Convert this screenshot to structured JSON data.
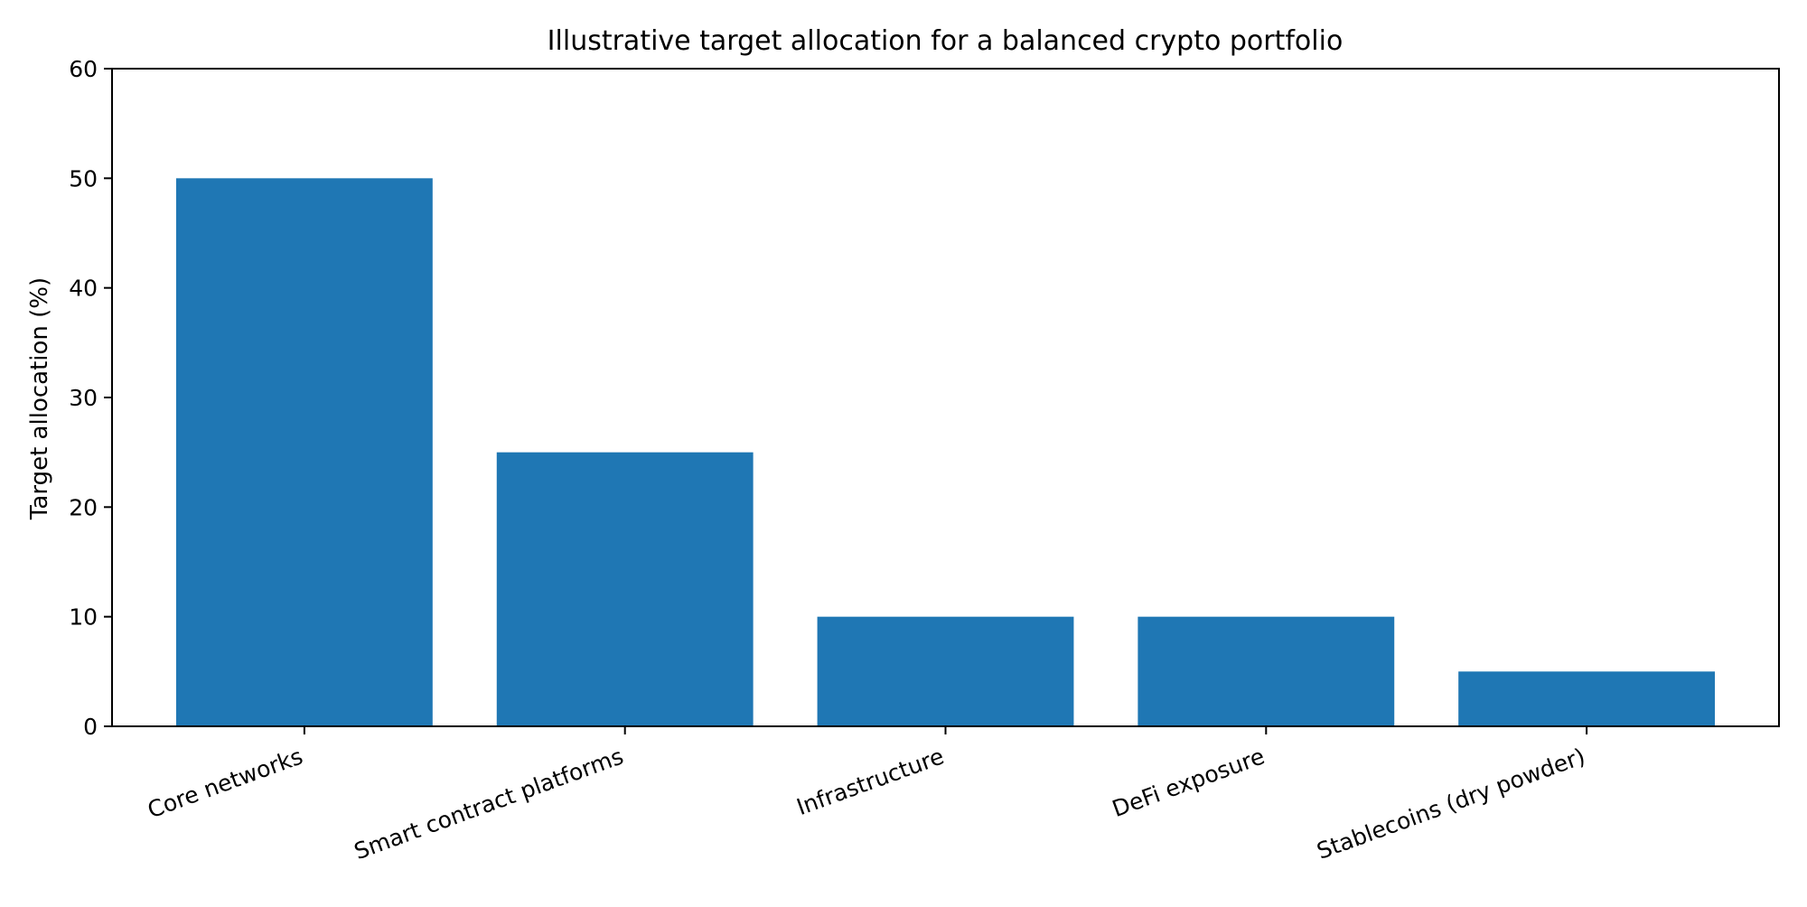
{
  "chart_data": {
    "type": "bar",
    "title": "Illustrative target allocation for a balanced crypto portfolio",
    "xlabel": "",
    "ylabel": "Target allocation (%)",
    "categories": [
      "Core networks",
      "Smart contract platforms",
      "Infrastructure",
      "DeFi exposure",
      "Stablecoins (dry powder)"
    ],
    "values": [
      50,
      25,
      10,
      10,
      5
    ],
    "ylim": [
      0,
      60
    ],
    "yticks": [
      0,
      10,
      20,
      30,
      40,
      50,
      60
    ],
    "ytick_labels": [
      "0",
      "10",
      "20",
      "30",
      "40",
      "50",
      "60"
    ],
    "bar_color": "#1f77b4",
    "grid": false,
    "legend": "none"
  }
}
